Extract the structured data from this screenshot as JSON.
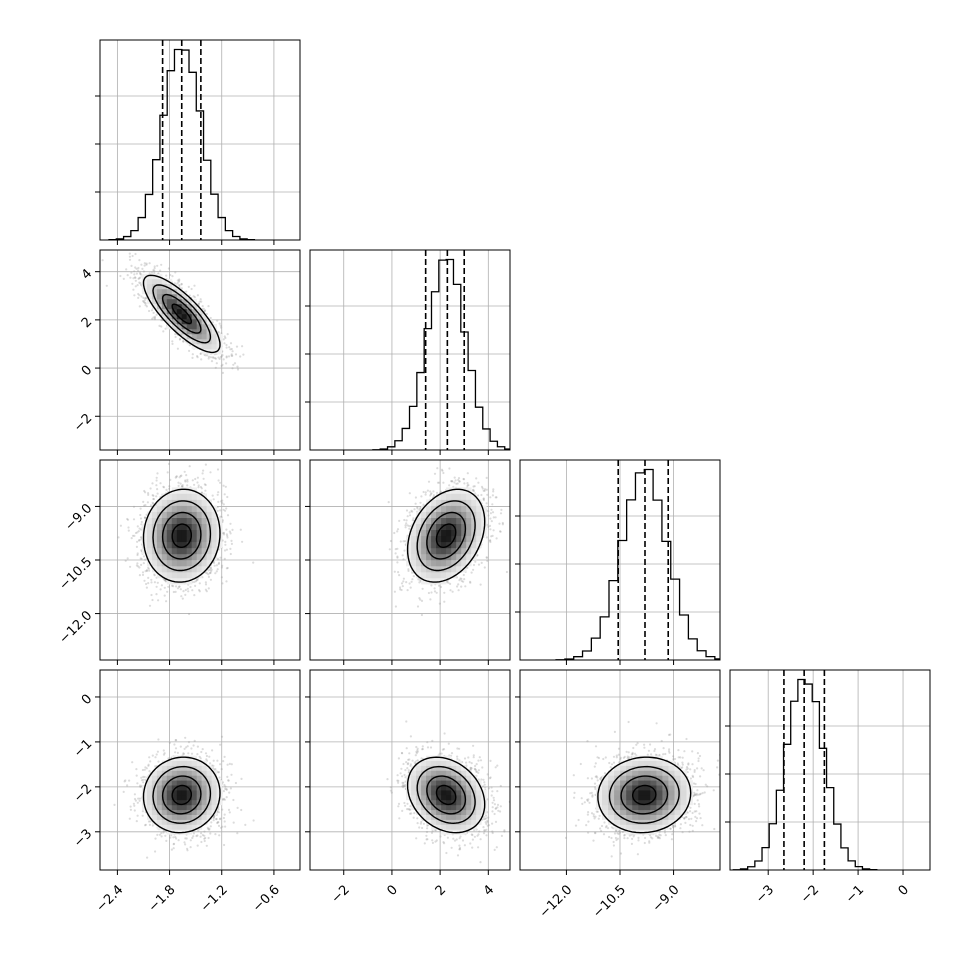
{
  "chart_data": {
    "type": "corner",
    "title": "",
    "parameters": [
      {
        "xlim": [
          -2.6,
          -0.3
        ],
        "ticks": [
          -2.4,
          -1.8,
          -1.2,
          -0.6
        ],
        "tick_labels": [
          "−2.4",
          "−1.8",
          "−1.2",
          "−0.6"
        ],
        "quantiles": [
          -1.88,
          -1.66,
          -1.44
        ],
        "mean": -1.66,
        "sd": 0.22
      },
      {
        "xlim": [
          -3.4,
          4.9
        ],
        "ticks": [
          -2,
          0,
          2,
          4
        ],
        "tick_labels": [
          "−2",
          "0",
          "2",
          "4"
        ],
        "quantiles": [
          1.4,
          2.3,
          3.0
        ],
        "mean": 2.25,
        "sd": 0.8
      },
      {
        "xlim": [
          -13.3,
          -7.7
        ],
        "ticks": [
          -12.0,
          -10.5,
          -9.0
        ],
        "tick_labels": [
          "−12.0",
          "−10.5",
          "−9.0"
        ],
        "quantiles": [
          -10.55,
          -9.8,
          -9.15
        ],
        "mean": -9.82,
        "sd": 0.65
      },
      {
        "xlim": [
          -3.85,
          0.6
        ],
        "ticks": [
          -3,
          -2,
          -1,
          0
        ],
        "tick_labels": [
          "−3",
          "−2",
          "−1",
          "0"
        ],
        "quantiles": [
          -2.65,
          -2.2,
          -1.75
        ],
        "mean": -2.18,
        "sd": 0.42
      }
    ],
    "correlations": [
      [
        1,
        -0.8,
        0.05,
        0.05
      ],
      [
        -0.8,
        1,
        0.3,
        -0.25
      ],
      [
        0.05,
        0.3,
        1,
        0.05
      ],
      [
        0.05,
        -0.25,
        0.05,
        1
      ]
    ],
    "hist_bins": 20,
    "grid": true,
    "colors": {
      "line": "#000000",
      "points": "#9a9a9a",
      "grid": "#b0b0b0"
    }
  }
}
